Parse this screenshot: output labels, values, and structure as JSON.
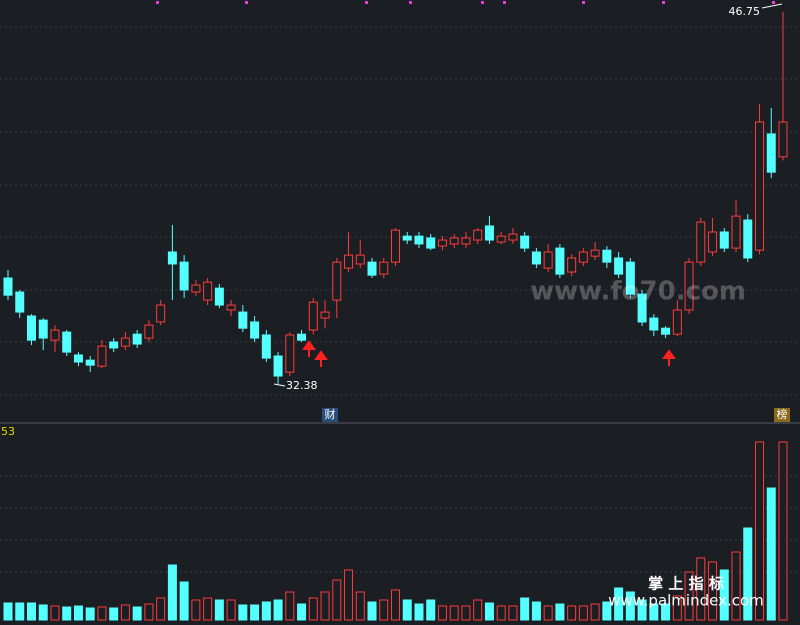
{
  "chart_data": {
    "type": "candlestick",
    "open": [
      36.51,
      35.97,
      35.05,
      34.89,
      34.12,
      34.43,
      33.55,
      33.35,
      33.12,
      34.05,
      33.89,
      34.35,
      34.2,
      34.82,
      37.51,
      37.12,
      35.97,
      35.66,
      36.12,
      35.28,
      35.2,
      34.82,
      34.32,
      33.51,
      32.89,
      34.35,
      34.51,
      34.97,
      35.66,
      36.89,
      37.05,
      37.12,
      36.66,
      37.12,
      38.12,
      38.12,
      38.05,
      37.74,
      37.82,
      37.82,
      37.97,
      38.51,
      37.89,
      37.97,
      38.12,
      37.51,
      36.89,
      37.66,
      36.74,
      37.12,
      37.35,
      37.58,
      37.28,
      37.12,
      35.89,
      34.97,
      34.58,
      34.35,
      35.28,
      37.12,
      37.51,
      38.28,
      37.66,
      38.74,
      37.58,
      42.05,
      41.17
    ],
    "high": [
      36.82,
      36.05,
      35.12,
      34.97,
      34.7,
      34.51,
      33.66,
      33.51,
      34.12,
      34.2,
      34.43,
      34.51,
      34.89,
      35.66,
      38.55,
      37.39,
      36.43,
      36.51,
      36.28,
      35.66,
      35.47,
      35.05,
      34.51,
      33.66,
      34.43,
      34.51,
      35.74,
      35.66,
      37.28,
      38.28,
      37.97,
      37.28,
      37.28,
      38.43,
      38.28,
      38.28,
      38.2,
      38.12,
      38.2,
      38.28,
      38.43,
      38.89,
      38.28,
      38.43,
      38.28,
      37.66,
      37.82,
      37.82,
      37.43,
      37.66,
      37.89,
      37.74,
      37.51,
      37.28,
      36.05,
      35.12,
      34.66,
      35.66,
      37.28,
      38.82,
      38.82,
      38.43,
      39.51,
      38.97,
      43.2,
      43.05,
      46.75
    ],
    "low": [
      35.66,
      34.97,
      33.93,
      33.74,
      33.66,
      33.51,
      33.12,
      32.89,
      33.05,
      33.66,
      33.74,
      33.82,
      34.05,
      34.7,
      35.66,
      35.74,
      35.82,
      35.47,
      35.35,
      35.05,
      34.43,
      34.05,
      33.28,
      32.38,
      32.74,
      34.05,
      34.35,
      34.58,
      34.97,
      36.74,
      36.89,
      36.51,
      36.51,
      36.97,
      37.82,
      37.66,
      37.58,
      37.58,
      37.66,
      37.66,
      37.82,
      37.82,
      37.82,
      37.82,
      37.51,
      36.89,
      36.74,
      36.51,
      36.58,
      36.97,
      37.2,
      36.89,
      36.51,
      35.74,
      34.66,
      34.28,
      34.2,
      34.28,
      35.12,
      36.97,
      37.35,
      37.51,
      37.51,
      37.12,
      37.43,
      40.35,
      41.03
    ],
    "close": [
      35.85,
      35.2,
      34.12,
      34.2,
      34.51,
      33.66,
      33.28,
      33.16,
      33.89,
      33.82,
      34.2,
      33.97,
      34.7,
      35.47,
      37.05,
      36.05,
      36.24,
      36.35,
      35.47,
      35.47,
      34.58,
      34.2,
      33.43,
      32.74,
      34.32,
      34.12,
      35.58,
      35.2,
      37.12,
      37.39,
      37.39,
      36.62,
      37.12,
      38.35,
      37.97,
      37.82,
      37.66,
      37.97,
      38.05,
      38.05,
      38.35,
      37.97,
      38.12,
      38.2,
      37.66,
      37.05,
      37.51,
      36.66,
      37.28,
      37.51,
      37.58,
      37.12,
      36.66,
      35.89,
      34.82,
      34.51,
      34.35,
      35.28,
      37.12,
      38.66,
      38.28,
      37.66,
      38.89,
      37.28,
      42.51,
      40.58,
      42.51
    ],
    "volume": [
      17,
      17,
      17,
      15,
      14,
      13,
      14,
      12,
      13,
      12,
      15,
      13,
      16,
      22,
      55,
      38,
      20,
      22,
      20,
      20,
      15,
      15,
      18,
      20,
      28,
      16,
      22,
      28,
      40,
      50,
      28,
      18,
      20,
      30,
      20,
      16,
      20,
      14,
      14,
      14,
      20,
      17,
      14,
      14,
      22,
      18,
      14,
      16,
      14,
      14,
      16,
      18,
      32,
      28,
      20,
      16,
      16,
      24,
      48,
      62,
      58,
      50,
      68,
      92,
      178,
      132,
      178
    ],
    "ylim": [
      31.05,
      47.2
    ],
    "volume_ylim": [
      0,
      190
    ],
    "up_color": "#ff3b3b",
    "down_color": "#54ffff",
    "high_label": "46.75",
    "low_label": "32.38",
    "volume_label": "53",
    "badge_left": "财",
    "badge_right": "榜",
    "watermark_1": "www.fo70.com",
    "watermark_2": "掌 上 指 标",
    "watermark_3": "www.palmindex.com"
  }
}
